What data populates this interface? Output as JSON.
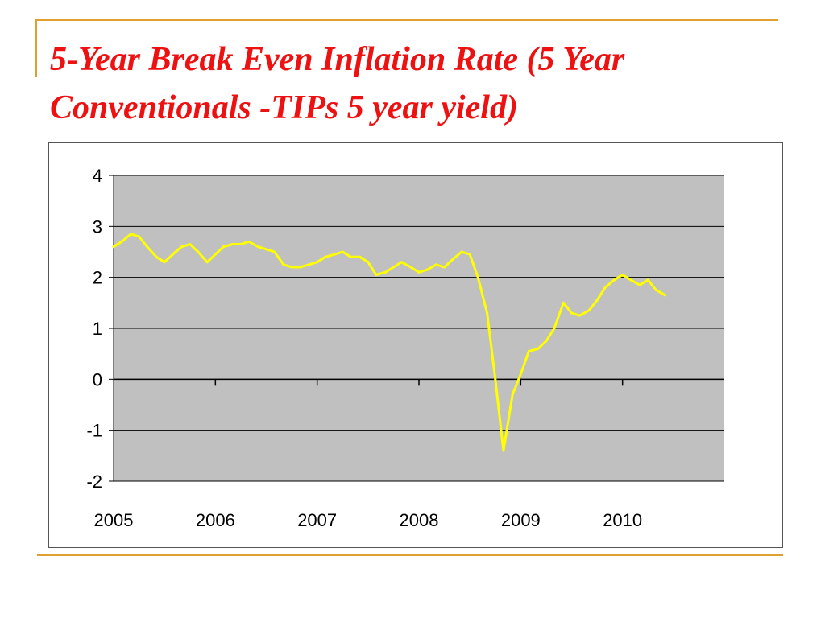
{
  "title": "5-Year Break Even Inflation Rate (5 Year Conventionals -TIPs 5 year yield)",
  "colors": {
    "title": "#ee1111",
    "plot_area": "#c0c0c0",
    "series_line": "#ffff00",
    "accent_rule": "#e0a030"
  },
  "chart_data": {
    "type": "line",
    "title": "",
    "xlabel": "",
    "ylabel": "",
    "ylim": [
      -2,
      4
    ],
    "xlim": [
      2005,
      2011
    ],
    "yticks": [
      4,
      3,
      2,
      1,
      0,
      -1,
      -2
    ],
    "xticks": [
      "2005",
      "2006",
      "2007",
      "2008",
      "2009",
      "2010"
    ],
    "grid": "horizontal",
    "legend": "none",
    "series": [
      {
        "x": [
          2005.0,
          2005.08,
          2005.17,
          2005.25,
          2005.33,
          2005.42,
          2005.5,
          2005.58,
          2005.67,
          2005.75,
          2005.83,
          2005.92,
          2006.0,
          2006.08,
          2006.17,
          2006.25,
          2006.33,
          2006.42,
          2006.5,
          2006.58,
          2006.67,
          2006.75,
          2006.83,
          2006.92,
          2007.0,
          2007.08,
          2007.17,
          2007.25,
          2007.33,
          2007.42,
          2007.5,
          2007.58,
          2007.67,
          2007.75,
          2007.83,
          2007.92,
          2008.0,
          2008.08,
          2008.17,
          2008.25,
          2008.33,
          2008.42,
          2008.5,
          2008.58,
          2008.67,
          2008.75,
          2008.83,
          2008.92,
          2009.0,
          2009.08,
          2009.17,
          2009.25,
          2009.33,
          2009.42,
          2009.5,
          2009.58,
          2009.67,
          2009.75,
          2009.83,
          2009.92,
          2010.0,
          2010.08,
          2010.17,
          2010.25,
          2010.33,
          2010.42
        ],
        "values": [
          2.6,
          2.7,
          2.85,
          2.8,
          2.6,
          2.4,
          2.3,
          2.45,
          2.6,
          2.65,
          2.5,
          2.3,
          2.45,
          2.6,
          2.65,
          2.65,
          2.7,
          2.6,
          2.55,
          2.5,
          2.25,
          2.2,
          2.2,
          2.25,
          2.3,
          2.4,
          2.45,
          2.5,
          2.4,
          2.4,
          2.3,
          2.05,
          2.1,
          2.2,
          2.3,
          2.2,
          2.1,
          2.15,
          2.25,
          2.2,
          2.35,
          2.5,
          2.45,
          2.0,
          1.3,
          0.0,
          -1.4,
          -0.3,
          0.1,
          0.55,
          0.6,
          0.75,
          1.0,
          1.5,
          1.3,
          1.25,
          1.35,
          1.55,
          1.8,
          1.95,
          2.05,
          1.95,
          1.85,
          1.95,
          1.75,
          1.65
        ]
      }
    ]
  }
}
